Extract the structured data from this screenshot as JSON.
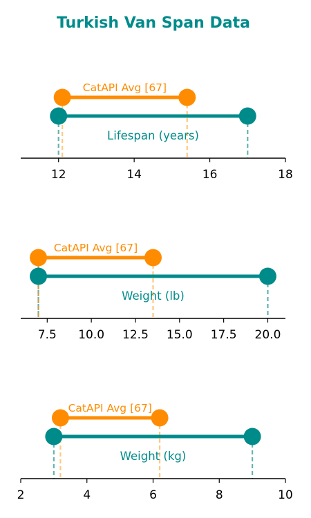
{
  "title": "Turkish Van Span Data",
  "colors": {
    "breed": "#008b8b",
    "reference": "#ff8c00",
    "title": "#008b8b",
    "breed_drop": "#66b2b2",
    "reference_drop": "#ffc97f",
    "overlap_drop": "#c8a050",
    "axis": "#000000"
  },
  "chart_data": [
    {
      "type": "dumbbell",
      "series_label": "Lifespan (years)",
      "breed_range": [
        12,
        17
      ],
      "reference_label": "CatAPI Avg [67]",
      "reference_range": [
        12.1,
        15.4
      ],
      "xlim": [
        11,
        18
      ],
      "xticks": [
        12,
        14,
        16,
        18
      ],
      "tick_labels": [
        "12",
        "14",
        "16",
        "18"
      ]
    },
    {
      "type": "dumbbell",
      "series_label": "Weight (lb)",
      "breed_range": [
        7,
        20
      ],
      "reference_label": "CatAPI Avg [67]",
      "reference_range": [
        7,
        13.5
      ],
      "xlim": [
        6,
        21
      ],
      "xticks": [
        7.5,
        10,
        12.5,
        15,
        17.5,
        20
      ],
      "tick_labels": [
        "7.5",
        "10.0",
        "12.5",
        "15.0",
        "17.5",
        "20.0"
      ]
    },
    {
      "type": "dumbbell",
      "series_label": "Weight (kg)",
      "breed_range": [
        3,
        9
      ],
      "reference_label": "CatAPI Avg [67]",
      "reference_range": [
        3.2,
        6.2
      ],
      "xlim": [
        2,
        10
      ],
      "xticks": [
        2,
        4,
        6,
        8,
        10
      ],
      "tick_labels": [
        "2",
        "4",
        "6",
        "8",
        "10"
      ]
    }
  ]
}
